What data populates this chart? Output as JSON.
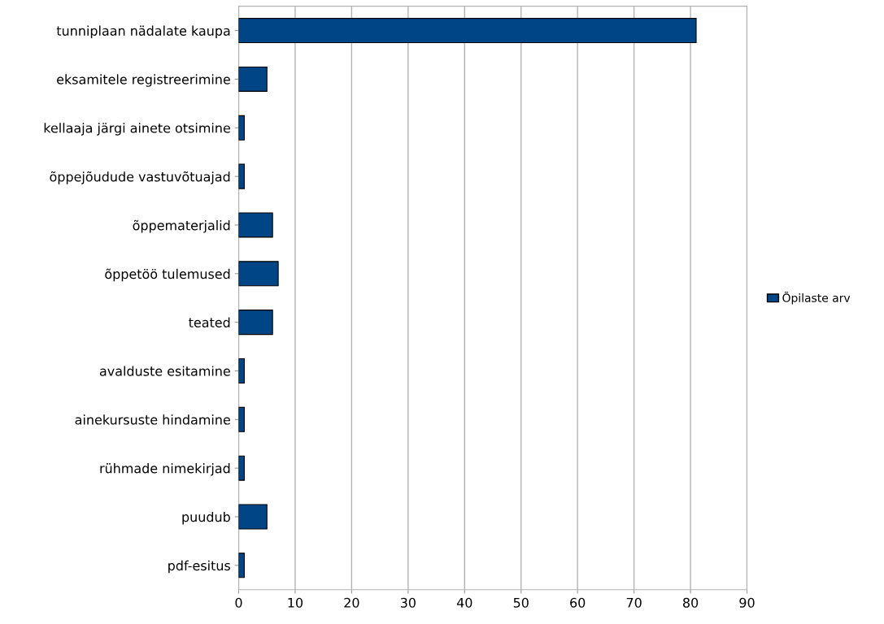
{
  "chart_data": {
    "type": "bar",
    "orientation": "horizontal",
    "categories": [
      "tunniplaan nädalate kaupa",
      "eksamitele registreerimine",
      "kellaaja järgi ainete otsimine",
      "õppejõudude vastuvõtuajad",
      "õppematerjalid",
      "õppetöö tulemused",
      "teated",
      "avalduste esitamine",
      "ainekursuste hindamine",
      "rühmade nimekirjad",
      "puudub",
      "pdf-esitus"
    ],
    "series": [
      {
        "name": "Õpilaste arv",
        "color": "#004586",
        "values": [
          81,
          5,
          1,
          1,
          6,
          7,
          6,
          1,
          1,
          1,
          5,
          1
        ]
      }
    ],
    "xlim": [
      0,
      90
    ],
    "xticks": [
      0,
      10,
      20,
      30,
      40,
      50,
      60,
      70,
      80,
      90
    ],
    "grid": "x",
    "legend": "right"
  }
}
